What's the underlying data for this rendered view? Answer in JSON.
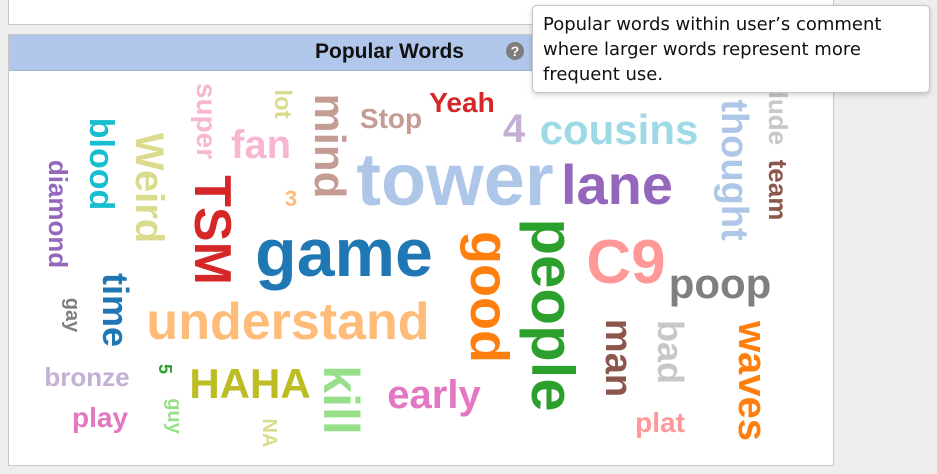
{
  "panel": {
    "title": "Popular Words",
    "help_icon": "question-circle-icon"
  },
  "tooltip": {
    "text": "Popular words within user’s comment where larger words represent more frequent use."
  },
  "words": [
    {
      "text": "tower",
      "color": "#aec7e8"
    },
    {
      "text": "game",
      "color": "#1f77b4"
    },
    {
      "text": "understand",
      "color": "#ffbb78"
    },
    {
      "text": "TSM",
      "color": "#d62728"
    },
    {
      "text": "lane",
      "color": "#9467bd"
    },
    {
      "text": "cousins",
      "color": "#9edae5"
    },
    {
      "text": "C9",
      "color": "#ff9896"
    },
    {
      "text": "people",
      "color": "#2ca02c"
    },
    {
      "text": "good",
      "color": "#ff7f0e"
    },
    {
      "text": "poop",
      "color": "#7f7f7f"
    },
    {
      "text": "early",
      "color": "#e377c2"
    },
    {
      "text": "HAHA",
      "color": "#bcbd22"
    },
    {
      "text": "kill",
      "color": "#98df8a"
    },
    {
      "text": "waves",
      "color": "#ff7f0e"
    },
    {
      "text": "man",
      "color": "#8c564b"
    },
    {
      "text": "bad",
      "color": "#c7c7c7"
    },
    {
      "text": "thought",
      "color": "#aec7e8"
    },
    {
      "text": "mind",
      "color": "#c49c94"
    },
    {
      "text": "fan",
      "color": "#f7b6d2"
    },
    {
      "text": "Weird",
      "color": "#dbdb8d"
    },
    {
      "text": "blood",
      "color": "#17becf"
    },
    {
      "text": "time",
      "color": "#1f77b4"
    },
    {
      "text": "diamond",
      "color": "#9467bd"
    },
    {
      "text": "Yeah",
      "color": "#d62728"
    },
    {
      "text": "Stop",
      "color": "#c49c94"
    },
    {
      "text": "4",
      "color": "#c5b0d5"
    },
    {
      "text": "super",
      "color": "#f7b6d2"
    },
    {
      "text": "lot",
      "color": "#dbdb8d"
    },
    {
      "text": "3",
      "color": "#ffbb78"
    },
    {
      "text": "team",
      "color": "#8c564b"
    },
    {
      "text": "dude",
      "color": "#c7c7c7"
    },
    {
      "text": "gay",
      "color": "#7f7f7f"
    },
    {
      "text": "bronze",
      "color": "#c5b0d5"
    },
    {
      "text": "play",
      "color": "#e377c2"
    },
    {
      "text": "5",
      "color": "#2ca02c"
    },
    {
      "text": "guy",
      "color": "#98df8a"
    },
    {
      "text": "NA",
      "color": "#dbdb8d"
    },
    {
      "text": "plat",
      "color": "#ff9896"
    }
  ]
}
